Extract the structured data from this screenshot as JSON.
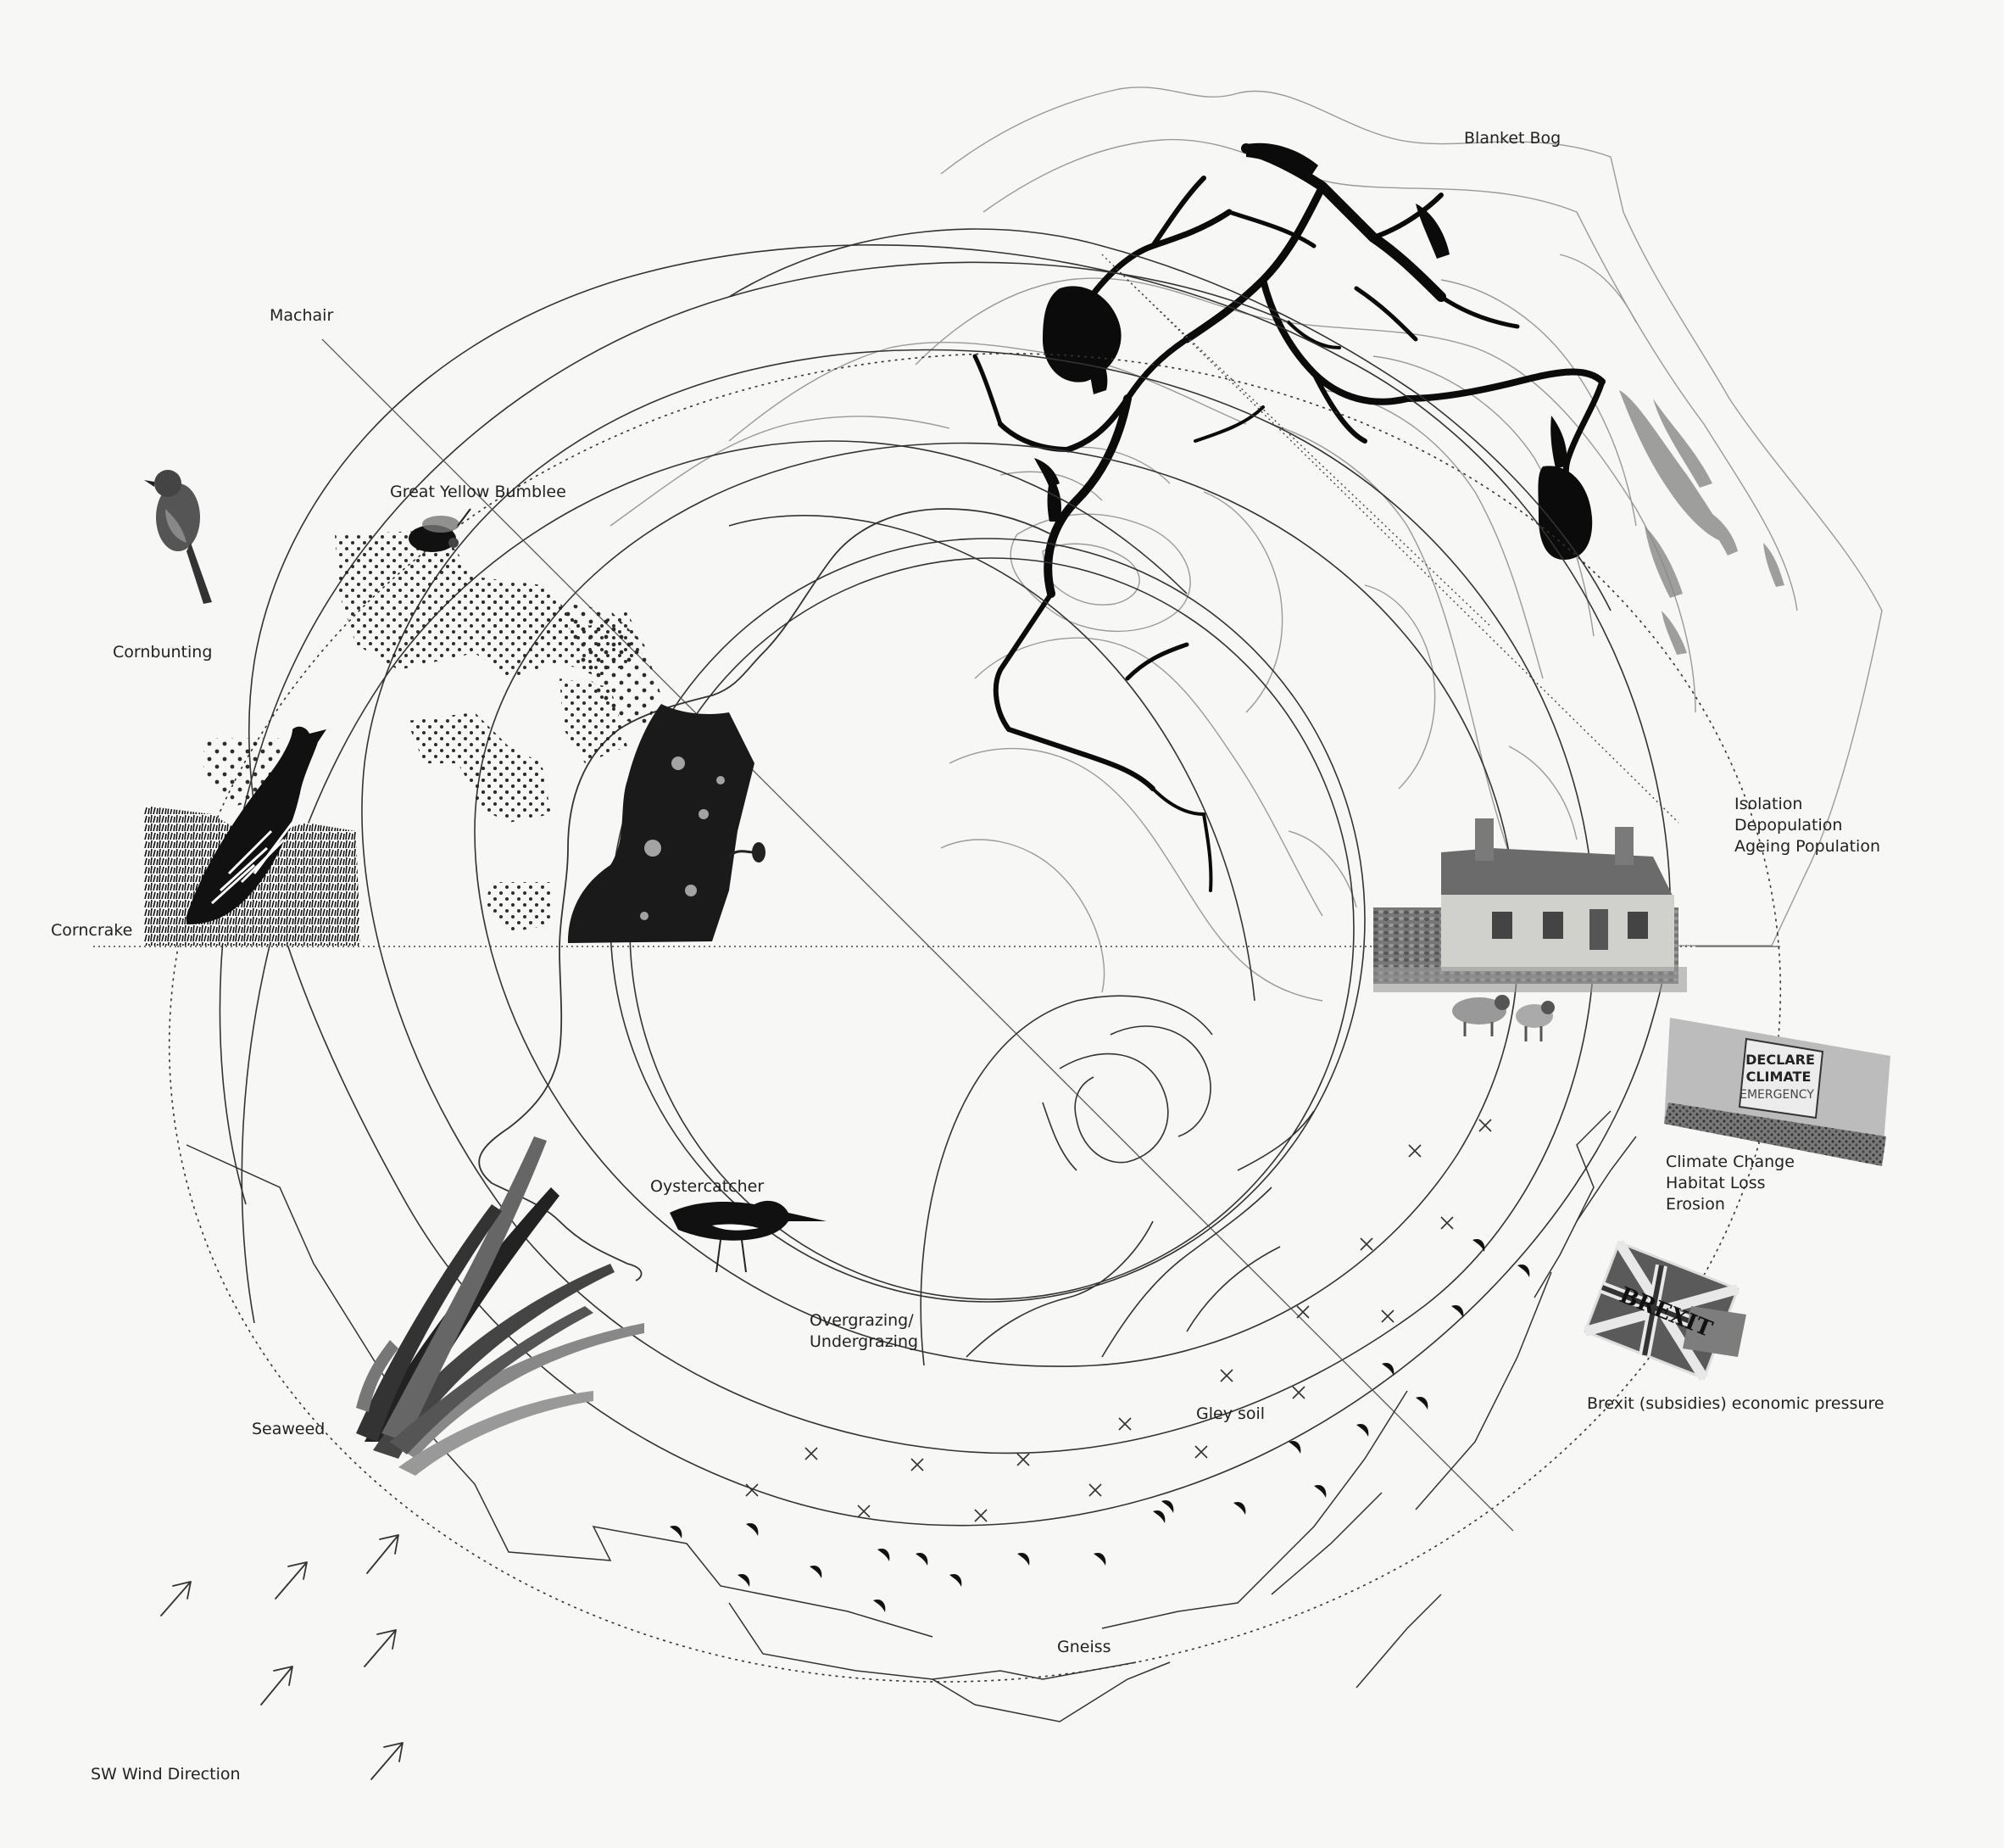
{
  "labels": {
    "blanket_bog": "Blanket Bog",
    "machair": "Machair",
    "great_yellow_bumblee": "Great Yellow Bumblee",
    "cornbunting": "Cornbunting",
    "corncrake": "Corncrake",
    "oystercatcher": "Oystercatcher",
    "overgrazing": [
      "Overgrazing/",
      "Undergrazing"
    ],
    "seaweed": "Seaweed",
    "gley_soil": "Gley soil",
    "gneiss": "Gneiss",
    "sw_wind_direction": "SW Wind Direction",
    "social_pressures": [
      "Isolation",
      "Depopulation",
      "Ageing Population"
    ],
    "climate_pressures": [
      "Climate Change",
      "Habitat Loss",
      "Erosion"
    ],
    "brexit_pressure": "Brexit (subsidies) economic pressure"
  },
  "placard": [
    "DECLARE",
    "CLIMATE",
    "EMERGENCY"
  ],
  "flag_text": "BREXIT",
  "colors": {
    "line": "#333333",
    "ink": "#111111",
    "paper": "#f7f7f6"
  }
}
